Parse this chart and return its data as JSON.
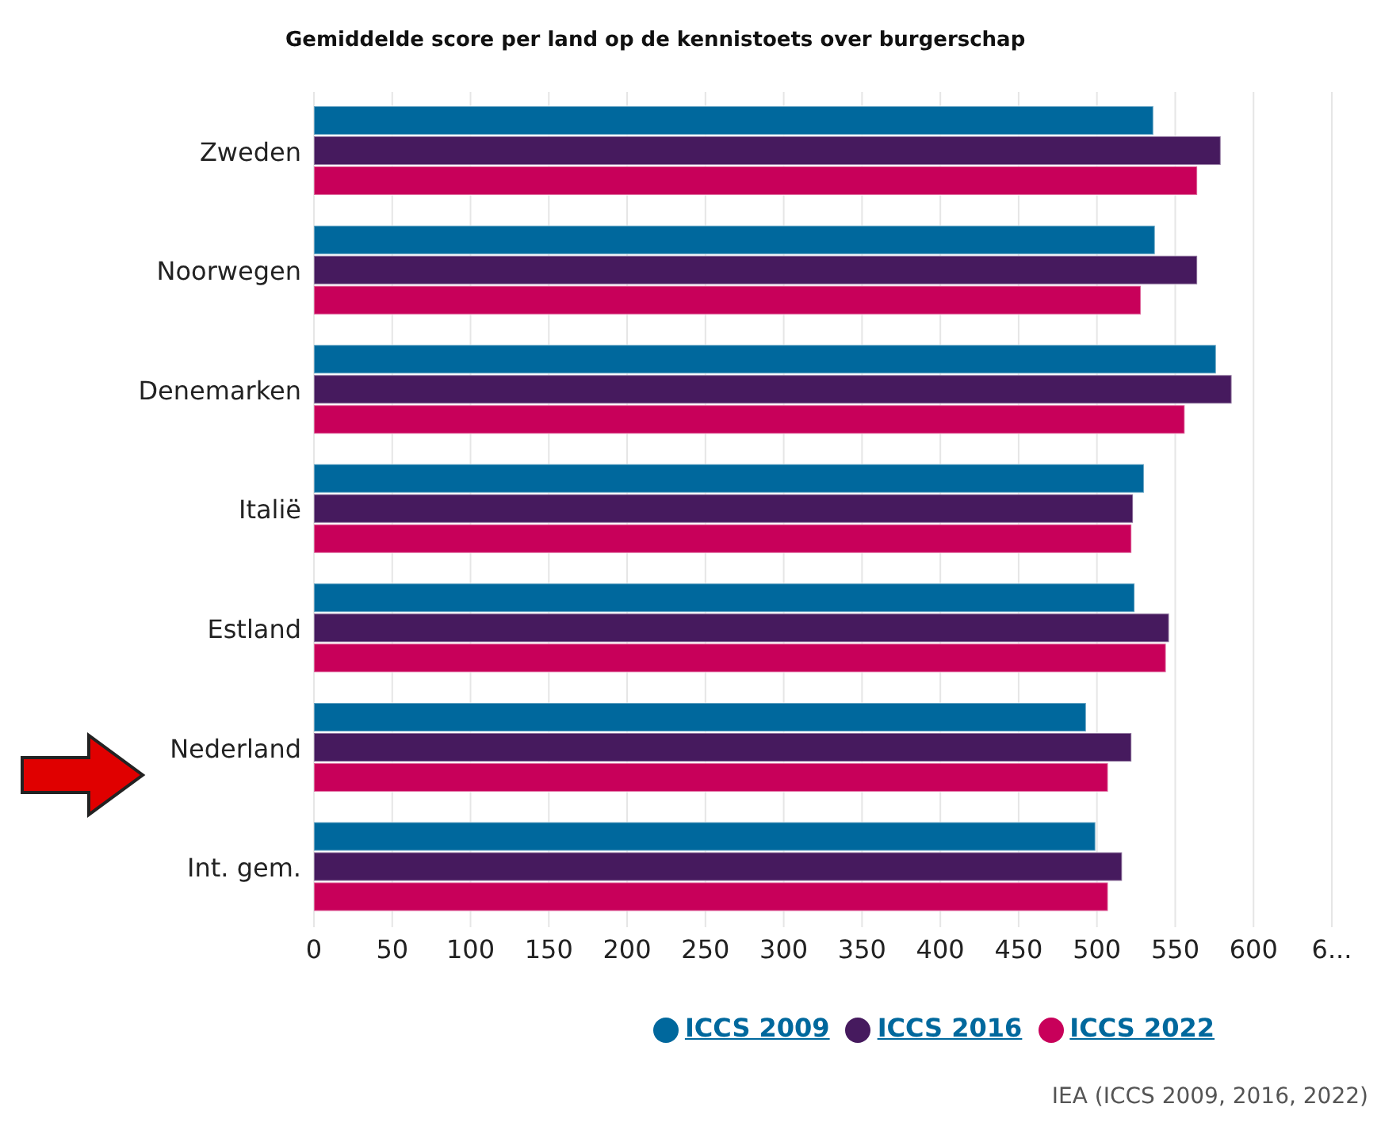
{
  "chart_data": {
    "type": "bar",
    "orientation": "horizontal",
    "title": "Gemiddelde score per land op de kennistoets over burgerschap",
    "categories": [
      "Zweden",
      "Noorwegen",
      "Denemarken",
      "Italië",
      "Estland",
      "Nederland",
      "Int. gem."
    ],
    "series": [
      {
        "name": "ICCS 2009",
        "color": "#00689d",
        "values": [
          536,
          537,
          576,
          530,
          524,
          493,
          499
        ]
      },
      {
        "name": "ICCS 2016",
        "color": "#461a5e",
        "values": [
          579,
          564,
          586,
          523,
          546,
          522,
          516
        ]
      },
      {
        "name": "ICCS 2022",
        "color": "#c8005a",
        "values": [
          564,
          528,
          556,
          522,
          544,
          507,
          507
        ]
      }
    ],
    "xlim": [
      0,
      650
    ],
    "xticks": [
      0,
      50,
      100,
      150,
      200,
      250,
      300,
      350,
      400,
      450,
      500,
      550,
      600,
      {
        "value": 650,
        "label": "6..."
      }
    ],
    "grid": "x",
    "legend": "bottom",
    "annotations": [
      "IEA (ICCS 2009, 2016, 2022)"
    ]
  }
}
